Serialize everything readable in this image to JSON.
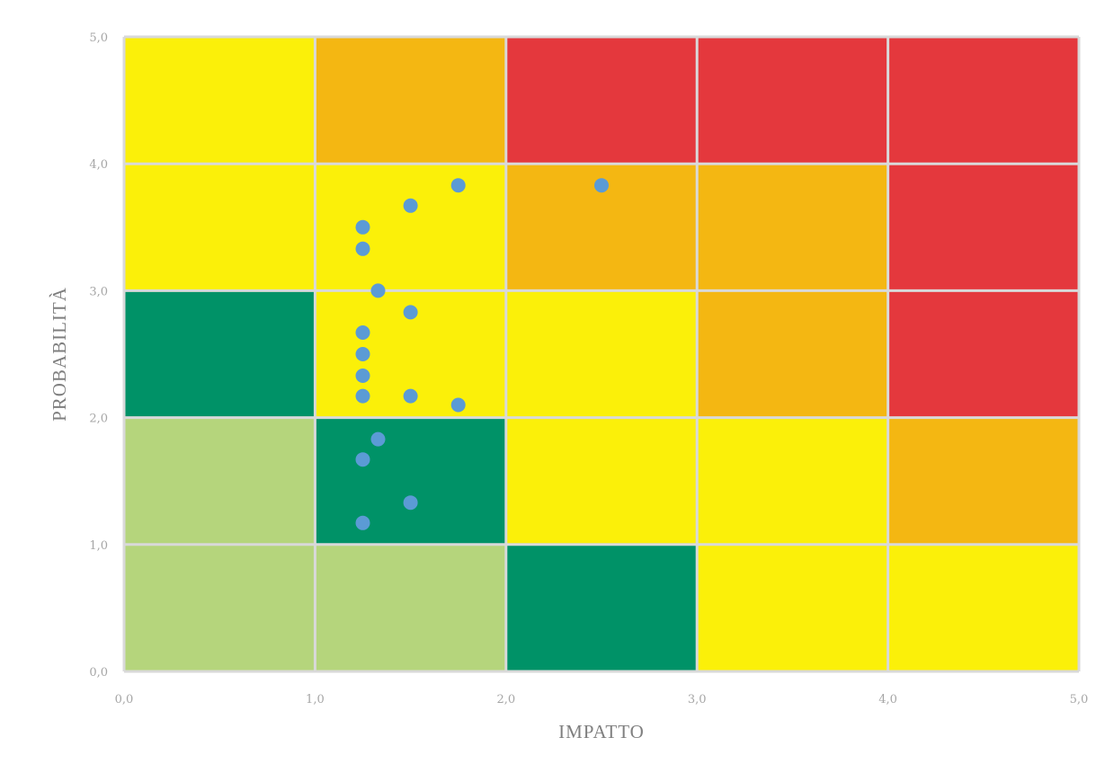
{
  "chart_data": {
    "type": "scatter",
    "title": "",
    "xlabel": "IMPATTO",
    "ylabel": "PROBABILITÀ",
    "xlim": [
      0,
      5
    ],
    "ylim": [
      0,
      5
    ],
    "grid": true,
    "x_tick_labels": [
      "0,0",
      "1,0",
      "2,0",
      "3,0",
      "4,0",
      "5,0"
    ],
    "y_tick_labels": [
      "0,0",
      "1,0",
      "2,0",
      "3,0",
      "4,0",
      "5,0"
    ],
    "background_cells": [
      [
        "light-green",
        "light-green",
        "dark-green",
        "yellow",
        "yellow"
      ],
      [
        "light-green",
        "dark-green",
        "yellow",
        "yellow",
        "orange"
      ],
      [
        "dark-green",
        "yellow",
        "yellow",
        "orange",
        "red"
      ],
      [
        "yellow",
        "yellow",
        "orange",
        "orange",
        "red"
      ],
      [
        "yellow",
        "orange",
        "red",
        "red",
        "red"
      ]
    ],
    "cell_colors": {
      "light-green": "#b5d57c",
      "dark-green": "#009267",
      "yellow": "#fbf009",
      "orange": "#f4b712",
      "red": "#e4383d"
    },
    "point_color": "#5b9bd5",
    "points": [
      {
        "x": 1.75,
        "y": 3.83
      },
      {
        "x": 2.5,
        "y": 3.83
      },
      {
        "x": 1.5,
        "y": 3.67
      },
      {
        "x": 1.25,
        "y": 3.5
      },
      {
        "x": 1.25,
        "y": 3.33
      },
      {
        "x": 1.33,
        "y": 3.0
      },
      {
        "x": 1.5,
        "y": 2.83
      },
      {
        "x": 1.25,
        "y": 2.67
      },
      {
        "x": 1.25,
        "y": 2.5
      },
      {
        "x": 1.25,
        "y": 2.33
      },
      {
        "x": 1.25,
        "y": 2.17
      },
      {
        "x": 1.5,
        "y": 2.17
      },
      {
        "x": 1.75,
        "y": 2.1
      },
      {
        "x": 1.33,
        "y": 1.83
      },
      {
        "x": 1.25,
        "y": 1.67
      },
      {
        "x": 1.5,
        "y": 1.33
      },
      {
        "x": 1.25,
        "y": 1.17
      }
    ]
  }
}
